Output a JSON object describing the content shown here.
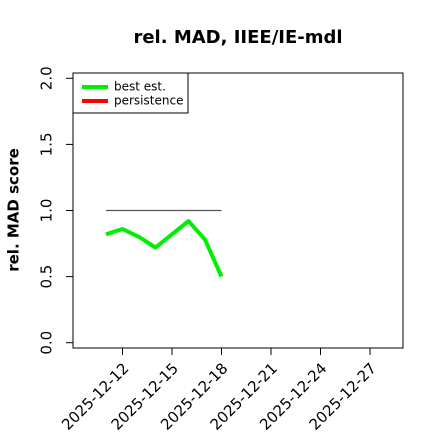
{
  "chart_data": {
    "type": "line",
    "title": "rel. MAD, IIEE/IE-mdl",
    "y_label": "rel. MAD score",
    "x": [
      "2025-12-11",
      "2025-12-12",
      "2025-12-13",
      "2025-12-14",
      "2025-12-15",
      "2025-12-16",
      "2025-12-17",
      "2025-12-18"
    ],
    "series": [
      {
        "name": "best est.",
        "color": "#00ee00",
        "values": [
          0.82,
          0.86,
          0.8,
          0.72,
          0.82,
          0.92,
          0.78,
          0.5
        ]
      },
      {
        "name": "persistence",
        "color": "#ff0000",
        "values": [
          null,
          null,
          null,
          null,
          null,
          null,
          null,
          null
        ]
      }
    ],
    "reference_line": {
      "value": 1,
      "color": "#555555"
    },
    "xlim": [
      "2025-12-09",
      "2025-12-29"
    ],
    "xticks": [
      "2025-12-12",
      "2025-12-15",
      "2025-12-18",
      "2025-12-21",
      "2025-12-24",
      "2025-12-27"
    ],
    "ylim": [
      -0.04,
      2.04
    ],
    "yticks": [
      {
        "value": 0,
        "label": "0.0"
      },
      {
        "value": 0.5,
        "label": "0.5"
      },
      {
        "value": 1,
        "label": "1.0"
      },
      {
        "value": 1.5,
        "label": "1.5"
      },
      {
        "value": 2,
        "label": "2.0"
      }
    ],
    "legend": "top-left"
  }
}
